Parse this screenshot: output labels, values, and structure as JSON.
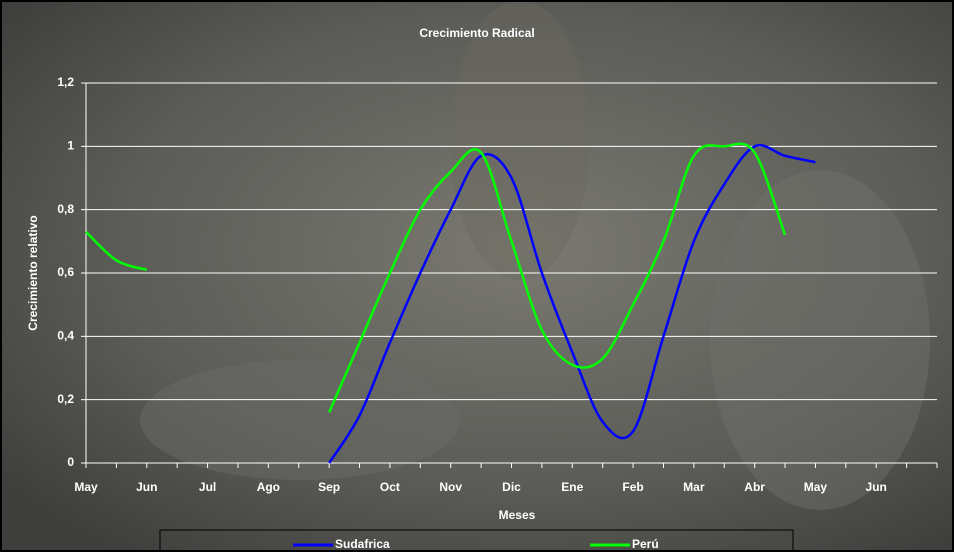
{
  "chart_data": {
    "type": "line",
    "title": "Crecimiento Radical",
    "x_label": "Meses",
    "y_label": "Crecimiento relativo",
    "categories": [
      "May",
      null,
      "Jun",
      null,
      "Jul",
      null,
      "Ago",
      null,
      "Sep",
      null,
      "Oct",
      null,
      "Nov",
      null,
      "Dic",
      null,
      "Ene",
      null,
      "Feb",
      null,
      "Mar",
      null,
      "Abr",
      null,
      "May",
      null,
      "Jun",
      null
    ],
    "series": [
      {
        "name": "Sudafrica",
        "color": "#0000ff",
        "values": [
          null,
          null,
          null,
          null,
          null,
          null,
          null,
          null,
          0,
          0.15,
          0.38,
          0.6,
          0.8,
          0.97,
          0.9,
          0.6,
          0.35,
          0.13,
          0.1,
          0.4,
          0.7,
          0.88,
          1.0,
          0.97,
          0.95,
          null,
          null,
          null
        ]
      },
      {
        "name": "Perú",
        "color": "#00ff00",
        "values": [
          0.73,
          0.64,
          0.61,
          null,
          null,
          null,
          null,
          null,
          0.16,
          0.38,
          0.6,
          0.8,
          0.92,
          0.98,
          0.7,
          0.42,
          0.31,
          0.33,
          0.5,
          0.7,
          0.97,
          1.0,
          0.98,
          0.72,
          null,
          null,
          null,
          null
        ]
      }
    ],
    "ylim": [
      0,
      1.2
    ],
    "yticks": [
      0,
      {
        "value": 0.2,
        "label": "0,2"
      },
      {
        "value": 0.4,
        "label": "0,4"
      },
      {
        "value": 0.6,
        "label": "0,6"
      },
      {
        "value": 0.8,
        "label": "0,8"
      },
      1,
      {
        "value": 1.2,
        "label": "1,2"
      }
    ],
    "grid": true
  }
}
